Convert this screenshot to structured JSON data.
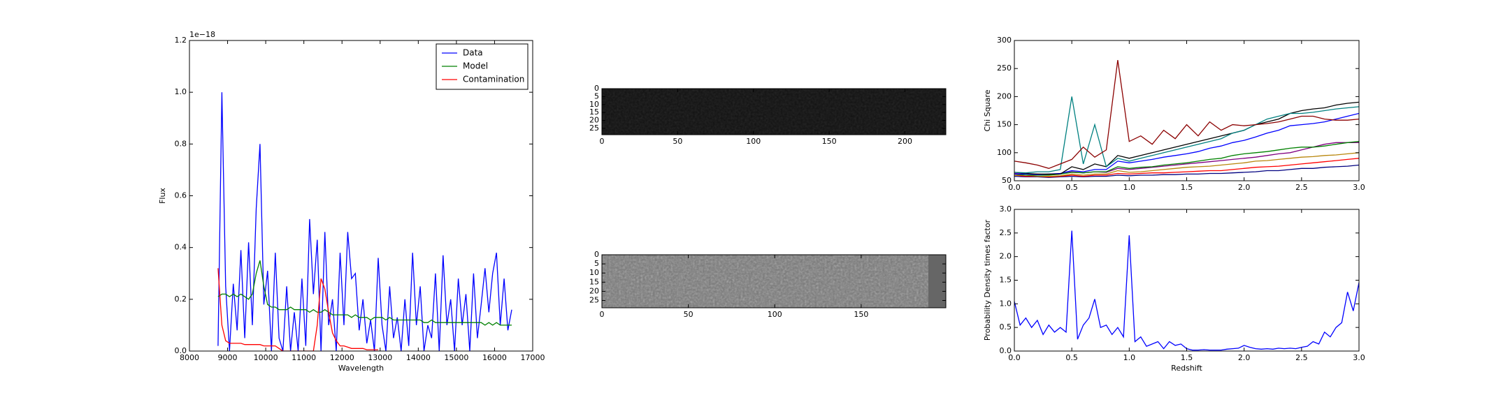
{
  "chart_data": [
    {
      "type": "line",
      "xlabel": "Wavelength",
      "ylabel": "Flux",
      "offset_text": "1e−18",
      "legend": "upper right",
      "x": [
        8750,
        8850,
        8950,
        9050,
        9150,
        9250,
        9350,
        9450,
        9550,
        9650,
        9750,
        9850,
        9950,
        10050,
        10150,
        10250,
        10350,
        10450,
        10550,
        10650,
        10750,
        10850,
        10950,
        11050,
        11150,
        11250,
        11350,
        11450,
        11550,
        11650,
        11750,
        11850,
        11950,
        12050,
        12150,
        12250,
        12350,
        12450,
        12550,
        12650,
        12750,
        12850,
        12950,
        13050,
        13150,
        13250,
        13350,
        13450,
        13550,
        13650,
        13750,
        13850,
        13950,
        14050,
        14150,
        14250,
        14350,
        14450,
        14550,
        14650,
        14750,
        14850,
        14950,
        15050,
        15150,
        15250,
        15350,
        15450,
        15550,
        15650,
        15750,
        15850,
        15950,
        16050,
        16150,
        16250,
        16350,
        16450
      ],
      "series": [
        {
          "name": "Data",
          "color": "#0000ff",
          "values": [
            0.02,
            1.0,
            0.25,
            0.0,
            0.26,
            0.08,
            0.39,
            0.05,
            0.42,
            0.1,
            0.55,
            0.8,
            0.18,
            0.31,
            0.0,
            0.38,
            0.05,
            0.0,
            0.25,
            0.0,
            0.15,
            0.0,
            0.28,
            0.02,
            0.51,
            0.22,
            0.43,
            0.0,
            0.46,
            0.1,
            0.2,
            0.0,
            0.38,
            0.1,
            0.46,
            0.28,
            0.3,
            0.08,
            0.2,
            0.03,
            0.12,
            0.0,
            0.36,
            0.1,
            0.0,
            0.25,
            0.05,
            0.13,
            0.0,
            0.2,
            0.02,
            0.38,
            0.1,
            0.25,
            0.0,
            0.1,
            0.05,
            0.3,
            0.0,
            0.37,
            0.1,
            0.2,
            0.0,
            0.28,
            0.1,
            0.22,
            0.0,
            0.3,
            0.05,
            0.18,
            0.32,
            0.15,
            0.3,
            0.38,
            0.1,
            0.28,
            0.08,
            0.16
          ]
        },
        {
          "name": "Model",
          "color": "#008000",
          "values": [
            0.21,
            0.22,
            0.22,
            0.21,
            0.22,
            0.21,
            0.22,
            0.21,
            0.2,
            0.22,
            0.3,
            0.35,
            0.25,
            0.18,
            0.17,
            0.17,
            0.16,
            0.16,
            0.16,
            0.17,
            0.16,
            0.16,
            0.16,
            0.16,
            0.15,
            0.16,
            0.15,
            0.15,
            0.16,
            0.15,
            0.14,
            0.14,
            0.14,
            0.14,
            0.14,
            0.13,
            0.14,
            0.13,
            0.13,
            0.13,
            0.12,
            0.13,
            0.13,
            0.13,
            0.12,
            0.13,
            0.12,
            0.12,
            0.12,
            0.12,
            0.12,
            0.12,
            0.12,
            0.12,
            0.11,
            0.11,
            0.12,
            0.11,
            0.11,
            0.11,
            0.11,
            0.11,
            0.11,
            0.11,
            0.11,
            0.11,
            0.11,
            0.11,
            0.11,
            0.11,
            0.1,
            0.11,
            0.1,
            0.11,
            0.1,
            0.1,
            0.1,
            0.1
          ]
        },
        {
          "name": "Contamination",
          "color": "#ff0000",
          "values": [
            0.32,
            0.1,
            0.04,
            0.03,
            0.03,
            0.03,
            0.03,
            0.025,
            0.025,
            0.025,
            0.025,
            0.025,
            0.02,
            0.02,
            0.02,
            0.02,
            0.01,
            0,
            0,
            0,
            0,
            0,
            0,
            0,
            0,
            0,
            0.1,
            0.28,
            0.24,
            0.15,
            0.07,
            0.04,
            0.02,
            0.02,
            0.015,
            0.01,
            0.01,
            0.01,
            0.01,
            0.005,
            0.005,
            0.005,
            0.005,
            null,
            null,
            null,
            null,
            null,
            null,
            null,
            null,
            null,
            null,
            null,
            null,
            null,
            null,
            null,
            null,
            null,
            null,
            null,
            null,
            null,
            null,
            null,
            null,
            null,
            null,
            null,
            null,
            null,
            null,
            null,
            null,
            null,
            null,
            null
          ]
        }
      ],
      "xlim": [
        8000,
        17000
      ],
      "xticks": [
        8000,
        9000,
        10000,
        11000,
        12000,
        13000,
        14000,
        15000,
        16000,
        17000
      ],
      "ylim": [
        0,
        1.2
      ],
      "yticks": [
        {
          "value": 0,
          "label": "0.0"
        },
        0.2,
        0.4,
        0.6,
        0.8,
        {
          "value": 1,
          "label": "1.0"
        },
        1.2
      ]
    },
    {
      "type": "image",
      "color": "#111111",
      "xlim": [
        0,
        227
      ],
      "xticks": [
        0,
        50,
        100,
        150,
        200
      ],
      "ylim": [
        29,
        0
      ],
      "yticks": [
        0,
        5,
        10,
        15,
        20,
        25
      ]
    },
    {
      "type": "image",
      "color": "#777777",
      "xlim": [
        0,
        199
      ],
      "xticks": [
        0,
        50,
        100,
        150
      ],
      "ylim": [
        29,
        0
      ],
      "yticks": [
        0,
        5,
        10,
        15,
        20,
        25
      ]
    },
    {
      "type": "line",
      "ylabel": "Chi Square",
      "x": [
        0,
        0.1,
        0.2,
        0.3,
        0.4,
        0.5,
        0.6,
        0.7,
        0.8,
        0.9,
        1.0,
        1.1,
        1.2,
        1.3,
        1.4,
        1.5,
        1.6,
        1.7,
        1.8,
        1.9,
        2.0,
        2.1,
        2.2,
        2.3,
        2.4,
        2.5,
        2.6,
        2.7,
        2.8,
        2.9,
        3.0
      ],
      "series": [
        {
          "color": "#000080",
          "values": [
            58,
            57,
            57,
            56,
            57,
            58,
            57,
            58,
            58,
            60,
            59,
            60,
            60,
            61,
            61,
            62,
            62,
            63,
            63,
            64,
            65,
            66,
            68,
            68,
            70,
            72,
            72,
            74,
            75,
            76,
            78
          ]
        },
        {
          "color": "#ff0000",
          "values": [
            60,
            58,
            58,
            57,
            58,
            60,
            58,
            60,
            60,
            63,
            62,
            63,
            64,
            64,
            65,
            66,
            67,
            68,
            68,
            70,
            72,
            74,
            75,
            76,
            78,
            80,
            82,
            84,
            86,
            88,
            90
          ]
        },
        {
          "color": "#b8860b",
          "values": [
            60,
            60,
            58,
            58,
            59,
            62,
            60,
            62,
            62,
            68,
            65,
            66,
            68,
            70,
            72,
            74,
            75,
            76,
            78,
            80,
            82,
            85,
            86,
            88,
            90,
            92,
            93,
            95,
            96,
            98,
            100
          ]
        },
        {
          "color": "#800080",
          "values": [
            63,
            62,
            62,
            61,
            62,
            66,
            64,
            66,
            65,
            72,
            70,
            72,
            74,
            76,
            78,
            80,
            82,
            84,
            86,
            88,
            90,
            92,
            95,
            98,
            100,
            105,
            110,
            115,
            118,
            118,
            118
          ]
        },
        {
          "color": "#008000",
          "values": [
            62,
            60,
            60,
            60,
            62,
            65,
            64,
            66,
            66,
            75,
            72,
            74,
            75,
            78,
            80,
            82,
            85,
            88,
            90,
            95,
            98,
            100,
            102,
            105,
            108,
            110,
            110,
            112,
            115,
            118,
            120
          ]
        },
        {
          "color": "#0000ff",
          "values": [
            62,
            62,
            61,
            62,
            63,
            68,
            66,
            70,
            70,
            85,
            82,
            85,
            88,
            92,
            95,
            98,
            102,
            108,
            112,
            118,
            122,
            128,
            135,
            140,
            148,
            150,
            152,
            155,
            160,
            165,
            170
          ]
        },
        {
          "color": "#000000",
          "values": [
            65,
            63,
            62,
            62,
            62,
            75,
            70,
            80,
            75,
            95,
            90,
            95,
            100,
            105,
            110,
            115,
            120,
            125,
            130,
            135,
            140,
            150,
            155,
            160,
            170,
            175,
            178,
            180,
            185,
            188,
            190
          ]
        },
        {
          "color": "#008080",
          "values": [
            65,
            64,
            66,
            66,
            70,
            200,
            80,
            150,
            75,
            90,
            85,
            90,
            95,
            100,
            105,
            110,
            115,
            120,
            125,
            135,
            140,
            150,
            160,
            165,
            170,
            170,
            172,
            175,
            178,
            180,
            182
          ]
        },
        {
          "color": "#8b0000",
          "values": [
            85,
            82,
            78,
            72,
            80,
            88,
            110,
            92,
            105,
            265,
            120,
            130,
            115,
            140,
            125,
            150,
            130,
            155,
            140,
            150,
            148,
            150,
            152,
            155,
            160,
            165,
            165,
            160,
            158,
            158,
            160
          ]
        }
      ],
      "xlim": [
        0,
        3
      ],
      "xticks": [
        {
          "value": 0,
          "label": "0.0"
        },
        0.5,
        {
          "value": 1,
          "label": "1.0"
        },
        1.5,
        {
          "value": 2,
          "label": "2.0"
        },
        2.5,
        {
          "value": 3,
          "label": "3.0"
        }
      ],
      "ylim": [
        50,
        300
      ],
      "yticks": [
        50,
        100,
        150,
        200,
        250,
        300
      ]
    },
    {
      "type": "line",
      "xlabel": "Redshift",
      "ylabel": "Probability Density times factor",
      "x": [
        0,
        0.05,
        0.1,
        0.15,
        0.2,
        0.25,
        0.3,
        0.35,
        0.4,
        0.45,
        0.5,
        0.55,
        0.6,
        0.65,
        0.7,
        0.75,
        0.8,
        0.85,
        0.9,
        0.95,
        1.0,
        1.05,
        1.1,
        1.15,
        1.2,
        1.25,
        1.3,
        1.35,
        1.4,
        1.45,
        1.5,
        1.55,
        1.6,
        1.65,
        1.7,
        1.75,
        1.8,
        1.85,
        1.9,
        1.95,
        2.0,
        2.05,
        2.1,
        2.15,
        2.2,
        2.25,
        2.3,
        2.35,
        2.4,
        2.45,
        2.5,
        2.55,
        2.6,
        2.65,
        2.7,
        2.75,
        2.8,
        2.85,
        2.9,
        2.95,
        3.0
      ],
      "series": [
        {
          "color": "#0000ff",
          "values": [
            1.05,
            0.55,
            0.7,
            0.5,
            0.65,
            0.35,
            0.55,
            0.4,
            0.5,
            0.4,
            2.55,
            0.25,
            0.55,
            0.7,
            1.1,
            0.5,
            0.55,
            0.35,
            0.5,
            0.3,
            2.45,
            0.2,
            0.3,
            0.1,
            0.15,
            0.2,
            0.05,
            0.2,
            0.12,
            0.15,
            0.05,
            0.02,
            0.02,
            0.03,
            0.02,
            0.02,
            0.02,
            0.04,
            0.05,
            0.06,
            0.12,
            0.08,
            0.05,
            0.04,
            0.05,
            0.04,
            0.06,
            0.05,
            0.06,
            0.05,
            0.08,
            0.1,
            0.2,
            0.15,
            0.4,
            0.3,
            0.5,
            0.6,
            1.25,
            0.85,
            1.45
          ]
        }
      ],
      "xlim": [
        0,
        3
      ],
      "xticks": [
        {
          "value": 0,
          "label": "0.0"
        },
        0.5,
        {
          "value": 1,
          "label": "1.0"
        },
        1.5,
        {
          "value": 2,
          "label": "2.0"
        },
        2.5,
        {
          "value": 3,
          "label": "3.0"
        }
      ],
      "ylim": [
        0,
        3
      ],
      "yticks": [
        {
          "value": 0,
          "label": "0.0"
        },
        0.5,
        {
          "value": 1,
          "label": "1.0"
        },
        1.5,
        {
          "value": 2,
          "label": "2.0"
        },
        2.5,
        {
          "value": 3,
          "label": "3.0"
        }
      ]
    }
  ]
}
